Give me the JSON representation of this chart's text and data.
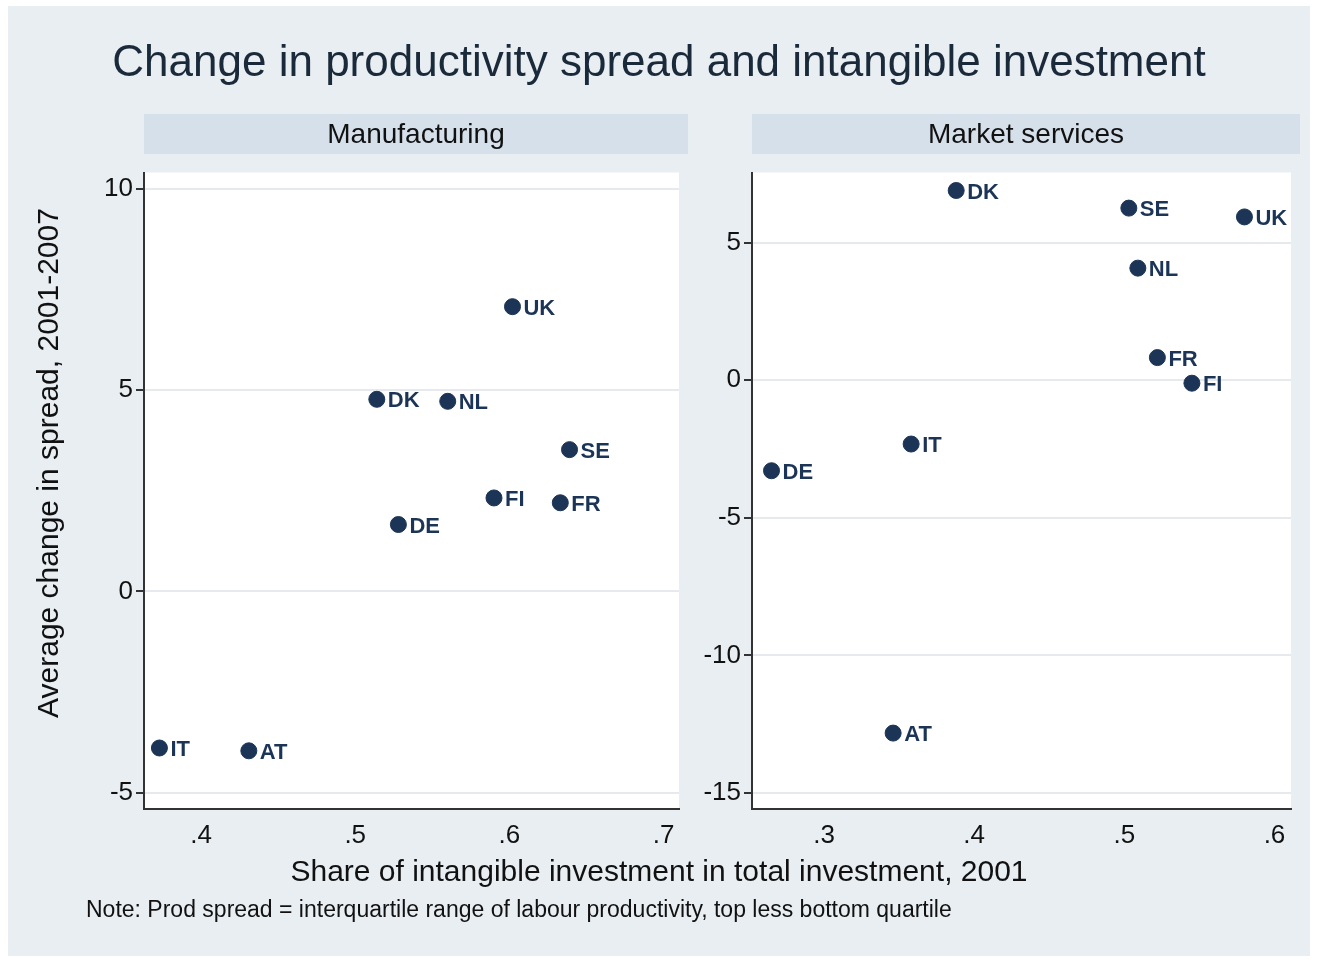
{
  "chart_data": [
    {
      "type": "scatter",
      "title": "Change in productivity spread and intangible investment",
      "subtitle": "Manufacturing",
      "xlabel": "Share of intangible investment in total investment, 2001",
      "ylabel": "Average change in spread, 2001-2007",
      "x": [
        0.373,
        0.431,
        0.514,
        0.56,
        0.602,
        0.639,
        0.59,
        0.633,
        0.528
      ],
      "series": [
        {
          "color": "#1c3557",
          "values": [
            -3.89,
            -3.96,
            4.77,
            4.72,
            7.07,
            3.52,
            2.32,
            2.2,
            1.66
          ]
        }
      ],
      "xlim": [
        0.363,
        0.71
      ],
      "xticks": [
        {
          "value": 0.4,
          "label": ".4"
        },
        {
          "value": 0.5,
          "label": ".5"
        },
        {
          "value": 0.6,
          "label": ".6"
        },
        {
          "value": 0.7,
          "label": ".7"
        }
      ],
      "ylim": [
        -5.4,
        10.4
      ],
      "yticks": [
        -5,
        0,
        5,
        10
      ],
      "grid": "y",
      "marker": "circle",
      "legend": false,
      "annotations": [
        {
          "text": "IT",
          "x": 0.373,
          "y": -3.89
        },
        {
          "text": "AT",
          "x": 0.431,
          "y": -3.96
        },
        {
          "text": "DK",
          "x": 0.514,
          "y": 4.77
        },
        {
          "text": "NL",
          "x": 0.56,
          "y": 4.72
        },
        {
          "text": "UK",
          "x": 0.602,
          "y": 7.07
        },
        {
          "text": "SE",
          "x": 0.639,
          "y": 3.52
        },
        {
          "text": "FI",
          "x": 0.59,
          "y": 2.32
        },
        {
          "text": "FR",
          "x": 0.633,
          "y": 2.2
        },
        {
          "text": "DE",
          "x": 0.528,
          "y": 1.66
        },
        "Note: Prod spread = interquartile range of labour productivity, top less bottom quartile"
      ]
    },
    {
      "type": "scatter",
      "subtitle": "Market services",
      "x": [
        0.388,
        0.503,
        0.58,
        0.509,
        0.522,
        0.545,
        0.358,
        0.265,
        0.346
      ],
      "series": [
        {
          "color": "#1c3557",
          "values": [
            6.89,
            6.25,
            5.93,
            4.07,
            0.82,
            -0.11,
            -2.32,
            -3.29,
            -12.82
          ]
        }
      ],
      "xlim": [
        0.252,
        0.611
      ],
      "xticks": [
        {
          "value": 0.3,
          "label": ".3"
        },
        {
          "value": 0.4,
          "label": ".4"
        },
        {
          "value": 0.5,
          "label": ".5"
        },
        {
          "value": 0.6,
          "label": ".6"
        }
      ],
      "ylim": [
        -15.57,
        7.54
      ],
      "yticks": [
        -15,
        -10,
        -5,
        0,
        5
      ],
      "grid": "y",
      "marker": "circle",
      "legend": false,
      "annotations": [
        {
          "text": "DK",
          "x": 0.388,
          "y": 6.89
        },
        {
          "text": "SE",
          "x": 0.503,
          "y": 6.25
        },
        {
          "text": "UK",
          "x": 0.58,
          "y": 5.93
        },
        {
          "text": "NL",
          "x": 0.509,
          "y": 4.07
        },
        {
          "text": "FR",
          "x": 0.522,
          "y": 0.82
        },
        {
          "text": "FI",
          "x": 0.545,
          "y": -0.11
        },
        {
          "text": "IT",
          "x": 0.358,
          "y": -2.32
        },
        {
          "text": "DE",
          "x": 0.265,
          "y": -3.29
        },
        {
          "text": "AT",
          "x": 0.346,
          "y": -12.82
        }
      ]
    }
  ]
}
